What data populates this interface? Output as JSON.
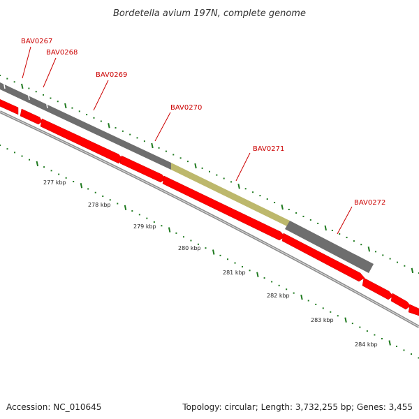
{
  "title": "Bordetella avium 197N, complete genome",
  "accession": "Accession: NC_010645",
  "summary": "Topology: circular; Length: 3,732,255 bp; Genes: 3,455",
  "colors": {
    "gene_outer": "#6e6e6e",
    "gene_highlight": "#bdb86c",
    "cds": "#ff0000",
    "backbone": "#8a8a8a",
    "tick": "#1f7a1f",
    "label": "#cc0000"
  },
  "genes": [
    {
      "name": "BAV0267"
    },
    {
      "name": "BAV0268"
    },
    {
      "name": "BAV0269"
    },
    {
      "name": "BAV0270"
    },
    {
      "name": "BAV0271",
      "highlighted": true
    },
    {
      "name": "BAV0272"
    }
  ],
  "ticks": [
    "277 kbp",
    "278 kbp",
    "279 kbp",
    "280 kbp",
    "281 kbp",
    "282 kbp",
    "283 kbp",
    "284 kbp"
  ]
}
